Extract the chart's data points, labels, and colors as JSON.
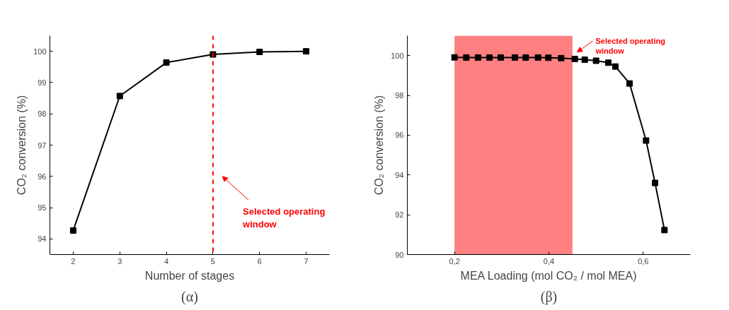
{
  "chart_data": [
    {
      "type": "line",
      "xlabel": "Number of stages",
      "ylabel": "CO₂ conversion (%)",
      "x": [
        2,
        3,
        4,
        5,
        6,
        7
      ],
      "series": [
        {
          "color": "#000000",
          "values": [
            94.27,
            98.57,
            99.64,
            99.9,
            99.98,
            100.0
          ]
        }
      ],
      "marker": "square",
      "line_style": "solid",
      "grid": false,
      "xlim": [
        1.5,
        7.5
      ],
      "xticks": [
        2,
        3,
        4,
        5,
        6,
        7
      ],
      "ylim": [
        93.5,
        100.5
      ],
      "yticks": [
        94,
        95,
        96,
        97,
        98,
        99,
        100
      ],
      "ref_lines": [
        {
          "axis": "x",
          "value": 5,
          "color": "#ff0000",
          "line_style": "dashed"
        }
      ],
      "annotations": [
        "Selected operating\nwindow",
        "(α)"
      ]
    },
    {
      "type": "line",
      "xlabel": "MEA Loading (mol CO₂ / mol MEA)",
      "ylabel": "CO₂ conversion (%)",
      "x": [
        0.2,
        0.225,
        0.25,
        0.274,
        0.298,
        0.328,
        0.351,
        0.377,
        0.399,
        0.426,
        0.455,
        0.476,
        0.5,
        0.526,
        0.541,
        0.571,
        0.606,
        0.625,
        0.645
      ],
      "series": [
        {
          "color": "#000000",
          "values": [
            99.91,
            99.9,
            99.9,
            99.9,
            99.9,
            99.9,
            99.9,
            99.9,
            99.89,
            99.87,
            99.83,
            99.79,
            99.74,
            99.64,
            99.45,
            98.6,
            95.73,
            93.6,
            91.23
          ]
        }
      ],
      "marker": "square",
      "line_style": "solid",
      "grid": false,
      "xlim": [
        0.1,
        0.7
      ],
      "xticks": [
        {
          "value": 0.2,
          "label": "0,2"
        },
        {
          "value": 0.4,
          "label": "0,4"
        },
        {
          "value": 0.6,
          "label": "0,6"
        }
      ],
      "ylim": [
        90,
        101
      ],
      "yticks": [
        90,
        92,
        94,
        96,
        98,
        100
      ],
      "bands": [
        {
          "axis": "x",
          "from": 0.2,
          "to": 0.45,
          "color": "#ff8080"
        }
      ],
      "annotations": [
        "Selected operating\nwindow",
        "(β)"
      ]
    }
  ]
}
